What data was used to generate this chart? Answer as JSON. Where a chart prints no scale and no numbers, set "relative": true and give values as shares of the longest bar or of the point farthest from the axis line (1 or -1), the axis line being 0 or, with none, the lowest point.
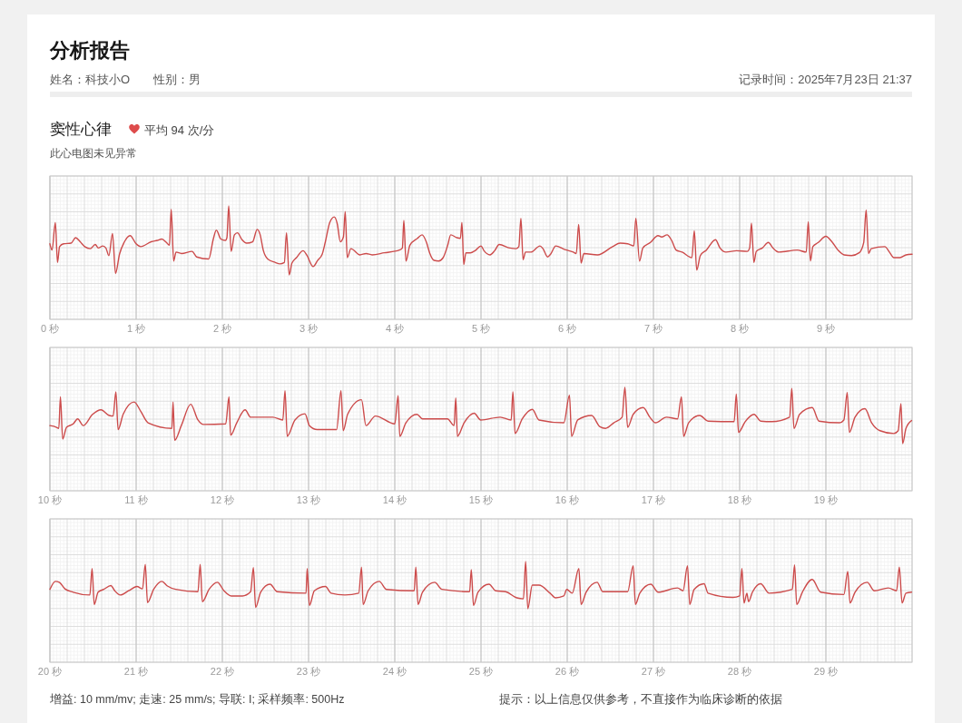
{
  "chart_data": [
    {
      "type": "line",
      "title": "分析报告",
      "subtitle": "窦性心律",
      "annotations": [
        "姓名：科技小O",
        "性别：男",
        "记录时间：2025年7月23日 21:37",
        "平均 94 次/分",
        "此心电图未见异常"
      ],
      "relative": true,
      "color": "#cc4b4b",
      "grid": true,
      "xlim": [
        0,
        10
      ],
      "xticks": [
        {
          "value": 0,
          "label": "0 秒"
        },
        {
          "value": 1,
          "label": "1 秒"
        },
        {
          "value": 2,
          "label": "2 秒"
        },
        {
          "value": 3,
          "label": "3 秒"
        },
        {
          "value": 4,
          "label": "4 秒"
        },
        {
          "value": 5,
          "label": "5 秒"
        },
        {
          "value": 6,
          "label": "6 秒"
        },
        {
          "value": 7,
          "label": "7 秒"
        },
        {
          "value": 8,
          "label": "8 秒"
        },
        {
          "value": 9,
          "label": "9 秒"
        }
      ],
      "x": [
        0,
        0.025,
        0.063,
        0.088,
        0.112,
        0.158,
        0.246,
        0.298,
        0.351,
        0.404,
        0.467,
        0.526,
        0.561,
        0.614,
        0.649,
        0.684,
        0.726,
        0.761,
        0.807,
        0.86,
        0.93,
        1.0,
        1.053,
        1.175,
        1.246,
        1.298,
        1.351,
        1.386,
        1.407,
        1.435,
        1.463,
        1.526,
        1.649,
        1.702,
        1.842,
        1.895,
        1.93,
        1.982,
        2.035,
        2.053,
        2.074,
        2.102,
        2.14,
        2.175,
        2.228,
        2.281,
        2.351,
        2.404,
        2.439,
        2.474,
        2.526,
        2.614,
        2.667,
        2.719,
        2.744,
        2.775,
        2.807,
        2.86,
        2.937,
        2.982,
        3.053,
        3.105,
        3.158,
        3.193,
        3.246,
        3.298,
        3.333,
        3.368,
        3.404,
        3.425,
        3.449,
        3.491,
        3.596,
        3.667,
        3.737,
        3.877,
        4.053,
        4.088,
        4.105,
        4.13,
        4.175,
        4.263,
        4.316,
        4.368,
        4.404,
        4.456,
        4.509,
        4.561,
        4.614,
        4.649,
        4.719,
        4.761,
        4.779,
        4.8,
        4.825,
        4.877,
        4.93,
        5.0,
        5.035,
        5.105,
        5.158,
        5.211,
        5.333,
        5.404,
        5.439,
        5.463,
        5.488,
        5.516,
        5.579,
        5.684,
        5.719,
        5.772,
        5.807,
        5.867,
        5.965,
        6.07,
        6.105,
        6.133,
        6.161,
        6.193,
        6.351,
        6.526,
        6.614,
        6.702,
        6.772,
        6.796,
        6.839,
        6.877,
        6.965,
        7.053,
        7.095,
        7.158,
        7.211,
        7.263,
        7.333,
        7.446,
        7.474,
        7.502,
        7.544,
        7.614,
        7.719,
        7.772,
        7.842,
        7.965,
        8.088,
        8.116,
        8.137,
        8.165,
        8.193,
        8.263,
        8.333,
        8.386,
        8.456,
        8.667,
        8.772,
        8.796,
        8.821,
        8.849,
        8.912,
        9.0,
        9.07,
        9.14,
        9.211,
        9.298,
        9.386,
        9.439,
        9.467,
        9.495,
        9.526,
        9.684,
        9.737,
        9.789,
        9.86,
        9.93,
        10.0
      ],
      "values": [
        0.45,
        0.36,
        0.76,
        0.18,
        0.41,
        0.45,
        0.46,
        0.54,
        0.48,
        0.41,
        0.38,
        0.44,
        0.39,
        0.42,
        0.39,
        0.28,
        0.6,
        0.02,
        0.3,
        0.47,
        0.57,
        0.45,
        0.41,
        0.48,
        0.5,
        0.52,
        0.47,
        0.43,
        0.95,
        0.2,
        0.33,
        0.31,
        0.34,
        0.26,
        0.23,
        0.52,
        0.65,
        0.52,
        0.5,
        0.54,
        1.0,
        0.34,
        0.58,
        0.61,
        0.51,
        0.46,
        0.48,
        0.66,
        0.58,
        0.36,
        0.23,
        0.18,
        0.16,
        0.18,
        0.61,
        0.0,
        0.17,
        0.25,
        0.35,
        0.28,
        0.12,
        0.21,
        0.3,
        0.47,
        0.76,
        0.84,
        0.74,
        0.48,
        0.55,
        0.92,
        0.25,
        0.38,
        0.29,
        0.31,
        0.29,
        0.32,
        0.36,
        0.39,
        0.79,
        0.2,
        0.43,
        0.53,
        0.58,
        0.47,
        0.32,
        0.21,
        0.2,
        0.25,
        0.43,
        0.58,
        0.54,
        0.53,
        0.76,
        0.15,
        0.32,
        0.32,
        0.35,
        0.42,
        0.35,
        0.29,
        0.35,
        0.44,
        0.39,
        0.38,
        0.41,
        0.82,
        0.22,
        0.33,
        0.33,
        0.42,
        0.38,
        0.26,
        0.3,
        0.42,
        0.37,
        0.33,
        0.31,
        0.73,
        0.17,
        0.31,
        0.29,
        0.41,
        0.46,
        0.45,
        0.42,
        0.82,
        0.2,
        0.39,
        0.47,
        0.57,
        0.55,
        0.58,
        0.5,
        0.36,
        0.33,
        0.25,
        0.64,
        0.07,
        0.28,
        0.36,
        0.51,
        0.39,
        0.33,
        0.35,
        0.34,
        0.39,
        0.75,
        0.18,
        0.34,
        0.39,
        0.47,
        0.39,
        0.33,
        0.36,
        0.33,
        0.77,
        0.2,
        0.41,
        0.47,
        0.56,
        0.48,
        0.36,
        0.29,
        0.28,
        0.32,
        0.47,
        0.94,
        0.31,
        0.38,
        0.41,
        0.33,
        0.25,
        0.25,
        0.29,
        0.3
      ]
    },
    {
      "type": "line",
      "relative": true,
      "color": "#cc4b4b",
      "grid": true,
      "xlim": [
        10,
        20
      ],
      "xticks": [
        {
          "value": 10,
          "label": "10 秒"
        },
        {
          "value": 11,
          "label": "11 秒"
        },
        {
          "value": 12,
          "label": "12 秒"
        },
        {
          "value": 13,
          "label": "13 秒"
        },
        {
          "value": 14,
          "label": "14 秒"
        },
        {
          "value": 15,
          "label": "15 秒"
        },
        {
          "value": 16,
          "label": "16 秒"
        },
        {
          "value": 17,
          "label": "17 秒"
        },
        {
          "value": 18,
          "label": "18 秒"
        },
        {
          "value": 19,
          "label": "19 秒"
        }
      ],
      "x": [
        10.0,
        10.077,
        10.103,
        10.122,
        10.148,
        10.193,
        10.27,
        10.322,
        10.386,
        10.495,
        10.592,
        10.688,
        10.733,
        10.765,
        10.791,
        10.849,
        10.977,
        11.055,
        11.138,
        11.415,
        11.428,
        11.447,
        11.524,
        11.633,
        11.717,
        11.781,
        12.039,
        12.077,
        12.096,
        12.167,
        12.264,
        12.328,
        12.585,
        12.701,
        12.727,
        12.752,
        12.842,
        12.958,
        13.01,
        13.1,
        13.325,
        13.376,
        13.402,
        13.453,
        13.614,
        13.666,
        13.775,
        14.0,
        14.039,
        14.058,
        14.129,
        14.257,
        14.322,
        14.611,
        14.688,
        14.707,
        14.727,
        14.804,
        14.92,
        14.997,
        15.222,
        15.35,
        15.37,
        15.395,
        15.479,
        15.595,
        15.672,
        15.961,
        16.026,
        16.051,
        16.122,
        16.283,
        16.379,
        16.444,
        16.54,
        16.637,
        16.669,
        16.701,
        16.765,
        16.881,
        16.958,
        17.023,
        17.151,
        17.28,
        17.325,
        17.35,
        17.408,
        17.537,
        17.633,
        17.936,
        17.961,
        17.987,
        18.064,
        18.167,
        18.244,
        18.373,
        18.579,
        18.605,
        18.63,
        18.695,
        18.842,
        18.92,
        19.158,
        19.209,
        19.248,
        19.273,
        19.338,
        19.453,
        19.531,
        19.627,
        19.788,
        19.839,
        19.871,
        19.891,
        19.929,
        19.994
      ],
      "values": [
        0.32,
        0.29,
        0.27,
        0.83,
        0.08,
        0.29,
        0.35,
        0.44,
        0.32,
        0.52,
        0.6,
        0.5,
        0.49,
        0.92,
        0.25,
        0.52,
        0.74,
        0.57,
        0.37,
        0.27,
        0.74,
        0.06,
        0.32,
        0.7,
        0.42,
        0.34,
        0.35,
        0.83,
        0.15,
        0.37,
        0.6,
        0.47,
        0.47,
        0.42,
        0.94,
        0.13,
        0.42,
        0.53,
        0.32,
        0.25,
        0.25,
        0.94,
        0.23,
        0.52,
        0.78,
        0.32,
        0.49,
        0.35,
        0.85,
        0.13,
        0.37,
        0.52,
        0.44,
        0.44,
        0.32,
        0.81,
        0.13,
        0.37,
        0.54,
        0.42,
        0.47,
        0.42,
        0.92,
        0.18,
        0.44,
        0.61,
        0.42,
        0.37,
        0.86,
        0.13,
        0.42,
        0.5,
        0.3,
        0.27,
        0.37,
        0.47,
        1.0,
        0.29,
        0.52,
        0.64,
        0.47,
        0.37,
        0.47,
        0.44,
        0.83,
        0.13,
        0.37,
        0.5,
        0.4,
        0.39,
        0.88,
        0.2,
        0.39,
        0.52,
        0.4,
        0.39,
        0.47,
        0.98,
        0.27,
        0.52,
        0.64,
        0.4,
        0.37,
        0.42,
        0.91,
        0.2,
        0.47,
        0.62,
        0.37,
        0.23,
        0.18,
        0.23,
        0.71,
        0.0,
        0.27,
        0.41
      ]
    },
    {
      "type": "line",
      "relative": true,
      "color": "#cc4b4b",
      "grid": true,
      "xlim": [
        20,
        30
      ],
      "annotations": [
        "增益: 10 mm/mv; 走速: 25 mm/s; 导联: I; 采样频率: 500Hz",
        "提示：以上信息仅供参考，不直接作为临床诊断的依据"
      ],
      "xticks": [
        {
          "value": 20,
          "label": "20 秒"
        },
        {
          "value": 21,
          "label": "21 秒"
        },
        {
          "value": 22,
          "label": "22 秒"
        },
        {
          "value": 23,
          "label": "23 秒"
        },
        {
          "value": 24,
          "label": "24 秒"
        },
        {
          "value": 25,
          "label": "25 秒"
        },
        {
          "value": 26,
          "label": "26 秒"
        },
        {
          "value": 27,
          "label": "27 秒"
        },
        {
          "value": 28,
          "label": "28 秒"
        },
        {
          "value": 29,
          "label": "29 秒"
        }
      ],
      "x": [
        20.0,
        20.064,
        20.109,
        20.174,
        20.27,
        20.463,
        20.489,
        20.514,
        20.559,
        20.624,
        20.707,
        20.752,
        20.817,
        20.913,
        21.01,
        21.074,
        21.106,
        21.132,
        21.203,
        21.299,
        21.363,
        21.46,
        21.717,
        21.743,
        21.768,
        21.846,
        21.942,
        22.019,
        22.103,
        22.232,
        22.328,
        22.36,
        22.386,
        22.444,
        22.553,
        22.637,
        22.971,
        22.984,
        23.01,
        23.067,
        23.196,
        23.26,
        23.421,
        23.582,
        23.614,
        23.633,
        23.691,
        23.82,
        23.904,
        24.225,
        24.244,
        24.27,
        24.321,
        24.463,
        24.547,
        24.868,
        24.887,
        24.913,
        24.965,
        25.093,
        25.17,
        25.286,
        25.415,
        25.492,
        25.518,
        25.543,
        25.595,
        25.672,
        25.801,
        25.865,
        25.961,
        25.994,
        26.058,
        26.135,
        26.161,
        26.219,
        26.347,
        26.412,
        26.701,
        26.765,
        26.791,
        26.842,
        26.97,
        27.054,
        27.279,
        27.344,
        27.395,
        27.421,
        27.472,
        27.588,
        27.633,
        27.923,
        28.0,
        28.026,
        28.051,
        28.084,
        28.103,
        28.148,
        28.244,
        28.341,
        28.611,
        28.637,
        28.662,
        28.727,
        28.842,
        28.939,
        29.209,
        29.254,
        29.28,
        29.338,
        29.479,
        29.563,
        29.724,
        29.82,
        29.852,
        29.884,
        29.929,
        29.994
      ],
      "values": [
        0.41,
        0.58,
        0.56,
        0.42,
        0.35,
        0.29,
        0.85,
        0.09,
        0.35,
        0.41,
        0.49,
        0.38,
        0.29,
        0.38,
        0.47,
        0.42,
        0.94,
        0.13,
        0.41,
        0.58,
        0.48,
        0.41,
        0.36,
        0.94,
        0.15,
        0.41,
        0.56,
        0.38,
        0.27,
        0.27,
        0.36,
        0.87,
        0.03,
        0.35,
        0.52,
        0.36,
        0.33,
        0.85,
        0.07,
        0.38,
        0.47,
        0.33,
        0.29,
        0.33,
        0.88,
        0.09,
        0.38,
        0.58,
        0.41,
        0.38,
        0.88,
        0.09,
        0.35,
        0.56,
        0.41,
        0.36,
        0.83,
        0.07,
        0.35,
        0.52,
        0.38,
        0.36,
        0.23,
        0.21,
        1.0,
        0.0,
        0.5,
        0.5,
        0.33,
        0.23,
        0.27,
        0.41,
        0.33,
        0.85,
        0.09,
        0.35,
        0.56,
        0.36,
        0.36,
        0.91,
        0.09,
        0.33,
        0.52,
        0.35,
        0.44,
        0.38,
        0.91,
        0.09,
        0.41,
        0.53,
        0.33,
        0.24,
        0.27,
        0.85,
        0.12,
        0.33,
        0.15,
        0.35,
        0.53,
        0.33,
        0.41,
        0.93,
        0.09,
        0.35,
        0.62,
        0.35,
        0.3,
        0.79,
        0.12,
        0.35,
        0.56,
        0.38,
        0.44,
        0.38,
        0.88,
        0.12,
        0.33,
        0.35
      ]
    }
  ]
}
